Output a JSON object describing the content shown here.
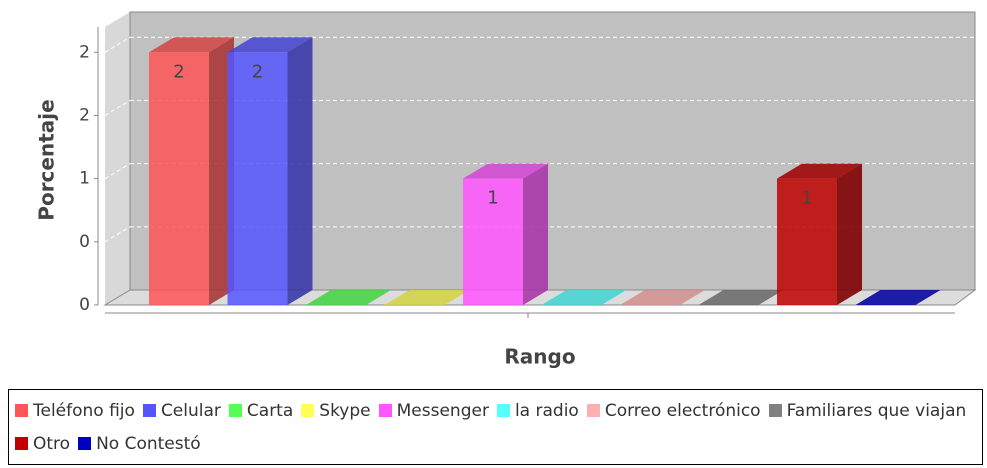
{
  "chart_data": {
    "type": "bar3d",
    "categories": [
      null
    ],
    "y_label": "Porcentaje",
    "x_label": "Rango",
    "ylim": [
      0,
      2.2
    ],
    "yticks": [
      0,
      {
        "value": 0.5,
        "label": "0"
      },
      1,
      {
        "value": 1.5,
        "label": "2"
      },
      2
    ],
    "grid": true,
    "legend": "bottom",
    "series": [
      {
        "name": "Teléfono fijo",
        "color": "#ff5555",
        "values": [
          2
        ],
        "value_labels": [
          "2"
        ]
      },
      {
        "name": "Celular",
        "color": "#5555ff",
        "values": [
          2
        ],
        "value_labels": [
          "2"
        ]
      },
      {
        "name": "Carta",
        "color": "#55ff55",
        "values": [
          0
        ],
        "value_labels": [
          null
        ]
      },
      {
        "name": "Skype",
        "color": "#ffff55",
        "values": [
          0
        ],
        "value_labels": [
          null
        ]
      },
      {
        "name": "Messenger",
        "color": "#ff55ff",
        "values": [
          1
        ],
        "value_labels": [
          "1"
        ]
      },
      {
        "name": "la radio",
        "color": "#55ffff",
        "values": [
          0
        ],
        "value_labels": [
          null
        ]
      },
      {
        "name": "Correo electrónico",
        "color": "#ffafaf",
        "values": [
          0
        ],
        "value_labels": [
          null
        ]
      },
      {
        "name": "Familiares que viajan",
        "color": "#808080",
        "values": [
          0
        ],
        "value_labels": [
          null
        ]
      },
      {
        "name": "Otro",
        "color": "#c00000",
        "values": [
          1
        ],
        "value_labels": [
          "1"
        ]
      },
      {
        "name": "No Contestó",
        "color": "#0000c0",
        "values": [
          0
        ],
        "value_labels": [
          null
        ]
      }
    ]
  }
}
